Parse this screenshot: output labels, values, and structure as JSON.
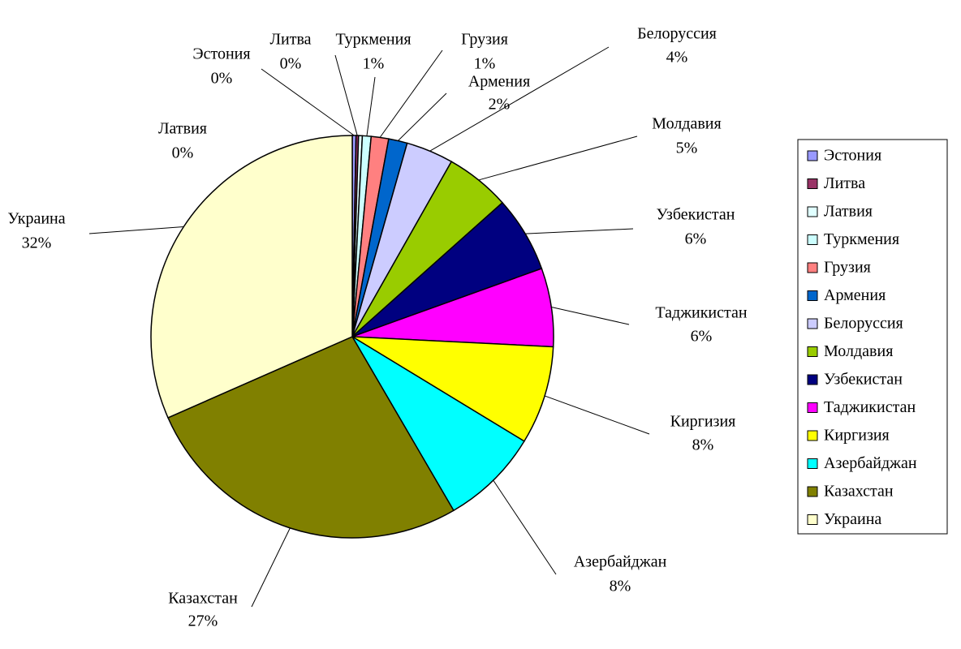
{
  "chart_data": {
    "type": "pie",
    "categories": [
      "Эстония",
      "Литва",
      "Латвия",
      "Туркмения",
      "Грузия",
      "Армения",
      "Белоруссия",
      "Молдавия",
      "Узбекистан",
      "Таджикистан",
      "Киргизия",
      "Азербайджан",
      "Казахстан",
      "Украина"
    ],
    "values": [
      0.3,
      0.2,
      0.3,
      0.7,
      1.4,
      1.5,
      3.8,
      5.2,
      6.1,
      6.3,
      7.9,
      7.9,
      26.8,
      31.6
    ],
    "value_labels": [
      "0%",
      "0%",
      "0%",
      "1%",
      "1%",
      "2%",
      "4%",
      "5%",
      "6%",
      "6%",
      "8%",
      "8%",
      "27%",
      "32%"
    ],
    "colors": [
      "#9999ff",
      "#993366",
      "#e0ffff",
      "#ccffff",
      "#ff8080",
      "#0066cc",
      "#ccccff",
      "#99cc00",
      "#000080",
      "#ff00ff",
      "#ffff00",
      "#00ffff",
      "#808000",
      "#ffffcc"
    ],
    "legend": "right"
  }
}
